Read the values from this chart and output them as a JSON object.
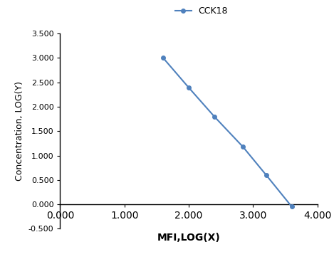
{
  "x": [
    1.602,
    1.996,
    2.398,
    2.845,
    3.204,
    3.602
  ],
  "y": [
    3.0,
    2.398,
    1.799,
    1.176,
    0.602,
    -0.046
  ],
  "line_color": "#4f81bd",
  "marker_color": "#4f81bd",
  "marker_style": "o",
  "marker_size": 4,
  "line_width": 1.5,
  "legend_label": "CCK18",
  "xlabel": "MFI,LOG(X)",
  "ylabel": "Concentration, LOG(Y)",
  "xlim": [
    0.0,
    4.0
  ],
  "ylim": [
    -0.5,
    3.5
  ],
  "xticks": [
    0.0,
    1.0,
    2.0,
    3.0,
    4.0
  ],
  "yticks": [
    -0.5,
    0.0,
    0.5,
    1.0,
    1.5,
    2.0,
    2.5,
    3.0,
    3.5
  ],
  "xtick_labels": [
    "0.000",
    "1.000",
    "2.000",
    "3.000",
    "4.000"
  ],
  "ytick_labels": [
    "-0.500",
    "0.000",
    "0.500",
    "1.000",
    "1.500",
    "2.000",
    "2.500",
    "3.000",
    "3.500"
  ],
  "background_color": "#ffffff",
  "xlabel_fontsize": 10,
  "ylabel_fontsize": 9,
  "tick_fontsize": 8,
  "legend_fontsize": 9
}
